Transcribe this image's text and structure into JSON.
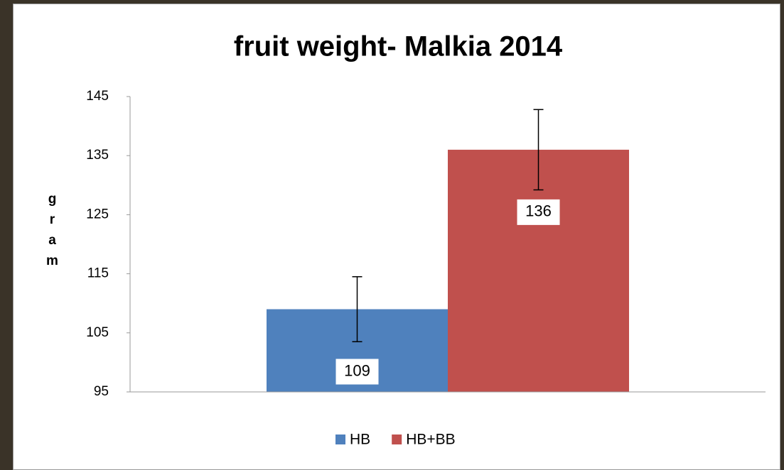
{
  "chart_data": {
    "type": "bar",
    "title": "fruit weight- Malkia 2014",
    "y_label": "gram",
    "categories": [
      null
    ],
    "series": [
      {
        "name": "HB",
        "color": "#4f81bd",
        "values": [
          109
        ],
        "errors": [
          5.5
        ]
      },
      {
        "name": "HB+BB",
        "color": "#c0504d",
        "values": [
          136
        ],
        "errors": [
          6.8
        ]
      }
    ],
    "ylim": [
      95,
      145
    ],
    "yticks": [
      95,
      105,
      115,
      125,
      135,
      145
    ],
    "grid": false,
    "legend": "bottom"
  }
}
